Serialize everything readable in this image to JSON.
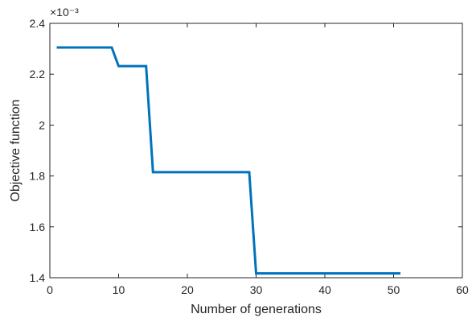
{
  "chart_data": {
    "type": "line",
    "title": "",
    "xlabel": "Number of generations",
    "ylabel": "Objective function",
    "y_exponent_label": "×10⁻³",
    "xlim": [
      0,
      60
    ],
    "ylim": [
      1.4,
      2.4
    ],
    "x_ticks": [
      0,
      10,
      20,
      30,
      40,
      50,
      60
    ],
    "y_ticks": [
      1.4,
      1.6,
      1.8,
      2.0,
      2.2,
      2.4
    ],
    "x_tick_labels": [
      "0",
      "10",
      "20",
      "30",
      "40",
      "50",
      "60"
    ],
    "y_tick_labels": [
      "1.4",
      "1.6",
      "1.8",
      "2",
      "2.2",
      "2.4"
    ],
    "grid": false,
    "box": true,
    "series": [
      {
        "color": "#0072bd",
        "x": [
          1,
          9,
          10,
          14,
          15,
          29,
          30,
          51
        ],
        "y": [
          2.305,
          2.305,
          2.232,
          2.232,
          1.815,
          1.815,
          1.417,
          1.417
        ]
      }
    ]
  }
}
